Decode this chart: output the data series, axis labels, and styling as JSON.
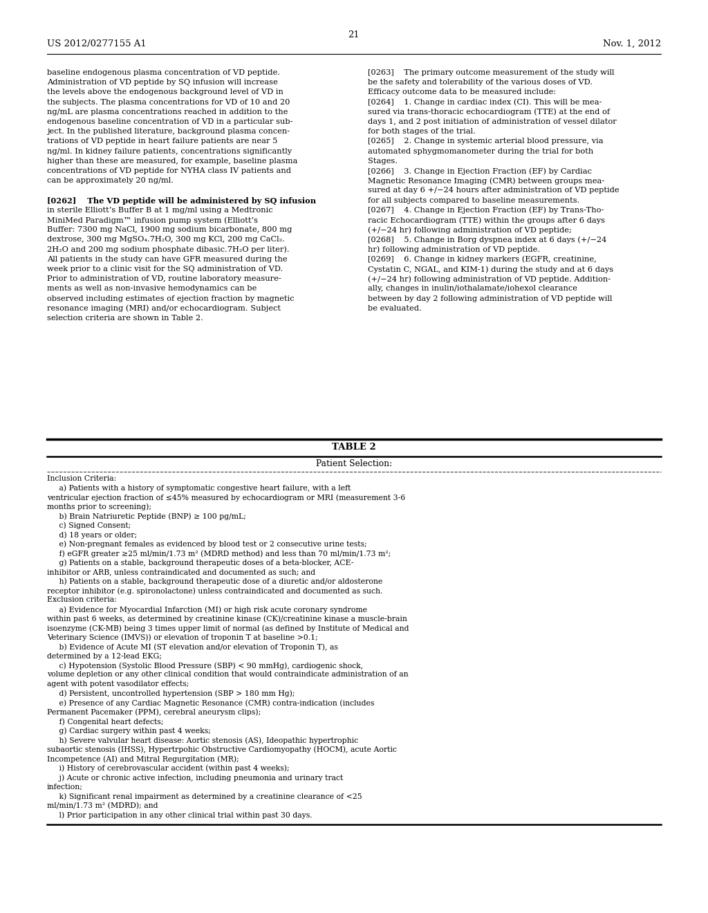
{
  "background_color": "#ffffff",
  "header_left": "US 2012/0277155 A1",
  "header_right": "Nov. 1, 2012",
  "page_number": "21",
  "left_column_text": [
    "baseline endogenous plasma concentration of VD peptide.",
    "Administration of VD peptide by SQ infusion will increase",
    "the levels above the endogenous background level of VD in",
    "the subjects. The plasma concentrations for VD of 10 and 20",
    "ng/mL are plasma concentrations reached in addition to the",
    "endogenous baseline concentration of VD in a particular sub-",
    "ject. In the published literature, background plasma concen-",
    "trations of VD peptide in heart failure patients are near 5",
    "ng/ml. In kidney failure patients, concentrations significantly",
    "higher than these are measured, for example, baseline plasma",
    "concentrations of VD peptide for NYHA class IV patients and",
    "can be approximately 20 ng/ml.",
    "",
    "[0262]    The VD peptide will be administered by SQ infusion",
    "in sterile Elliott’s Buffer B at 1 mg/ml using a Medtronic",
    "MiniMed Paradigm™ infusion pump system (Elliott’s",
    "Buffer: 7300 mg NaCl, 1900 mg sodium bicarbonate, 800 mg",
    "dextrose, 300 mg MgSO₄.7H₂O, 300 mg KCl, 200 mg CaCl₂.",
    "2H₂O and 200 mg sodium phosphate dibasic.7H₂O per liter).",
    "All patients in the study can have GFR measured during the",
    "week prior to a clinic visit for the SQ administration of VD.",
    "Prior to administration of VD, routine laboratory measure-",
    "ments as well as non-invasive hemodynamics can be",
    "observed including estimates of ejection fraction by magnetic",
    "resonance imaging (MRI) and/or echocardiogram. Subject",
    "selection criteria are shown in Table 2."
  ],
  "right_column_text": [
    "[0263]    The primary outcome measurement of the study will",
    "be the safety and tolerability of the various doses of VD.",
    "Efficacy outcome data to be measured include:",
    "[0264]    1. Change in cardiac index (CI). This will be mea-",
    "sured via trans-thoracic echocardiogram (TTE) at the end of",
    "days 1, and 2 post initiation of administration of vessel dilator",
    "for both stages of the trial.",
    "[0265]    2. Change in systemic arterial blood pressure, via",
    "automated sphygmomanometer during the trial for both",
    "Stages.",
    "[0266]    3. Change in Ejection Fraction (EF) by Cardiac",
    "Magnetic Resonance Imaging (CMR) between groups mea-",
    "sured at day 6 +/−24 hours after administration of VD peptide",
    "for all subjects compared to baseline measurements.",
    "[0267]    4. Change in Ejection Fraction (EF) by Trans-Tho-",
    "racic Echocardiogram (TTE) within the groups after 6 days",
    "(+/−24 hr) following administration of VD peptide;",
    "[0268]    5. Change in Borg dyspnea index at 6 days (+/−24",
    "hr) following administration of VD peptide.",
    "[0269]    6. Change in kidney markers (EGFR, creatinine,",
    "Cystatin C, NGAL, and KIM-1) during the study and at 6 days",
    "(+/−24 hr) following administration of VD peptide. Addition-",
    "ally, changes in inulin/iothalamate/iohexol clearance",
    "between by day 2 following administration of VD peptide will",
    "be evaluated."
  ],
  "table_title": "TABLE 2",
  "table_header": "Patient Selection:",
  "table_content": [
    "Inclusion Criteria:",
    "     a) Patients with a history of symptomatic congestive heart failure, with a left",
    "ventricular ejection fraction of ≤45% measured by echocardiogram or MRI (measurement 3-6",
    "months prior to screening);",
    "     b) Brain Natriuretic Peptide (BNP) ≥ 100 pg/mL;",
    "     c) Signed Consent;",
    "     d) 18 years or older;",
    "     e) Non-pregnant females as evidenced by blood test or 2 consecutive urine tests;",
    "     f) eGFR greater ≥25 ml/min/1.73 m² (MDRD method) and less than 70 ml/min/1.73 m²;",
    "     g) Patients on a stable, background therapeutic doses of a beta-blocker, ACE-",
    "inhibitor or ARB, unless contraindicated and documented as such; and",
    "     h) Patients on a stable, background therapeutic dose of a diuretic and/or aldosterone",
    "receptor inhibitor (e.g. spironolactone) unless contraindicated and documented as such.",
    "Exclusion criteria:",
    "     a) Evidence for Myocardial Infarction (MI) or high risk acute coronary syndrome",
    "within past 6 weeks, as determined by creatinine kinase (CK)/creatinine kinase a muscle-brain",
    "isoenzyme (CK-MB) being 3 times upper limit of normal (as defined by Institute of Medical and",
    "Veterinary Science (IMVS)) or elevation of troponin T at baseline >0.1;",
    "     b) Evidence of Acute MI (ST elevation and/or elevation of Troponin T), as",
    "determined by a 12-lead EKG;",
    "     c) Hypotension (Systolic Blood Pressure (SBP) < 90 mmHg), cardiogenic shock,",
    "volume depletion or any other clinical condition that would contraindicate administration of an",
    "agent with potent vasodilator effects;",
    "     d) Persistent, uncontrolled hypertension (SBP > 180 mm Hg);",
    "     e) Presence of any Cardiac Magnetic Resonance (CMR) contra-indication (includes",
    "Permanent Pacemaker (PPM), cerebral aneurysm clips);",
    "     f) Congenital heart defects;",
    "     g) Cardiac surgery within past 4 weeks;",
    "     h) Severe valvular heart disease: Aortic stenosis (AS), Ideopathic hypertrophic",
    "subaortic stenosis (IHSS), Hypertrpohic Obstructive Cardiomyopathy (HOCM), acute Aortic",
    "Incompetence (AI) and Mitral Regurgitation (MR);",
    "     i) History of cerebrovascular accident (within past 4 weeks);",
    "     j) Acute or chronic active infection, including pneumonia and urinary tract",
    "infection;",
    "     k) Significant renal impairment as determined by a creatinine clearance of <25",
    "ml/min/1.73 m² (MDRD); and",
    "     l) Prior participation in any other clinical trial within past 30 days."
  ],
  "left_bold_lines": [
    13
  ],
  "right_bold_lines": []
}
